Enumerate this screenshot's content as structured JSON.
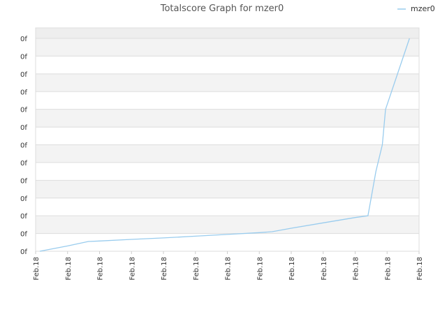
{
  "chart_data": {
    "type": "line",
    "title": "Totalscore Graph for mzer0",
    "legend_position": "top-right",
    "grid": true,
    "x_tick_labels": [
      "Feb.18",
      "Feb.18",
      "Feb.18",
      "Feb.18",
      "Feb.18",
      "Feb.18",
      "Feb.18",
      "Feb.18",
      "Feb.18",
      "Feb.18",
      "Feb.18",
      "Feb.18",
      "Feb.18"
    ],
    "y_tick_labels": [
      "0f",
      "0f",
      "0f",
      "0f",
      "0f",
      "0f",
      "0f",
      "0f",
      "0f",
      "0f",
      "0f",
      "0f",
      "0f"
    ],
    "xlim": [
      0,
      12
    ],
    "ylim": [
      0,
      12
    ],
    "series": [
      {
        "name": "mzer0",
        "color": "#99ccee",
        "x": [
          0.13,
          1.0,
          1.65,
          2.0,
          3.0,
          4.0,
          5.0,
          6.0,
          7.0,
          7.4,
          8.0,
          9.0,
          10.0,
          10.4,
          10.5,
          10.65,
          10.85,
          10.95,
          11.7
        ],
        "y": [
          0.0,
          0.3,
          0.55,
          0.58,
          0.67,
          0.75,
          0.85,
          0.95,
          1.05,
          1.1,
          1.3,
          1.6,
          1.9,
          2.0,
          3.0,
          4.5,
          6.0,
          8.0,
          12.0
        ]
      }
    ]
  }
}
